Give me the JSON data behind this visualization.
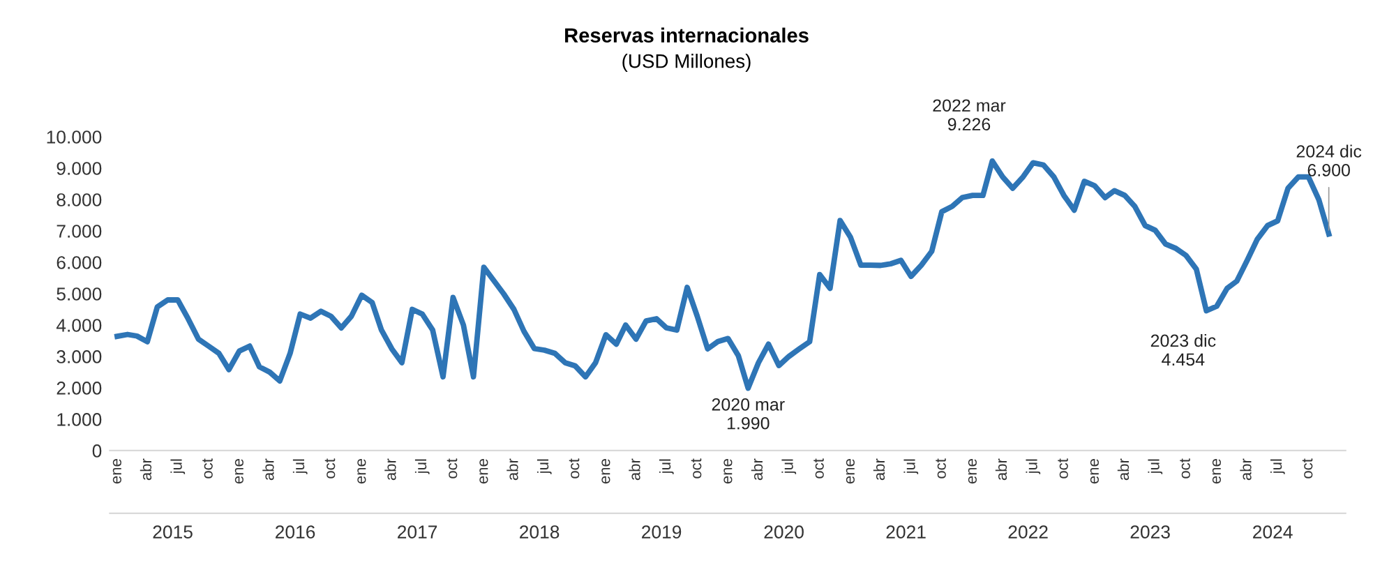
{
  "chart_data": {
    "type": "line",
    "title": "Reservas internacionales",
    "subtitle": "(USD Millones)",
    "x": [
      "2015-01",
      "2015-02",
      "2015-03",
      "2015-04",
      "2015-05",
      "2015-06",
      "2015-07",
      "2015-08",
      "2015-09",
      "2015-10",
      "2015-11",
      "2015-12",
      "2016-01",
      "2016-02",
      "2016-03",
      "2016-04",
      "2016-05",
      "2016-06",
      "2016-07",
      "2016-08",
      "2016-09",
      "2016-10",
      "2016-11",
      "2016-12",
      "2017-01",
      "2017-02",
      "2017-03",
      "2017-04",
      "2017-05",
      "2017-06",
      "2017-07",
      "2017-08",
      "2017-09",
      "2017-10",
      "2017-11",
      "2017-12",
      "2018-01",
      "2018-02",
      "2018-03",
      "2018-04",
      "2018-05",
      "2018-06",
      "2018-07",
      "2018-08",
      "2018-09",
      "2018-10",
      "2018-11",
      "2018-12",
      "2019-01",
      "2019-02",
      "2019-03",
      "2019-04",
      "2019-05",
      "2019-06",
      "2019-07",
      "2019-08",
      "2019-09",
      "2019-10",
      "2019-11",
      "2019-12",
      "2020-01",
      "2020-02",
      "2020-03",
      "2020-04",
      "2020-05",
      "2020-06",
      "2020-07",
      "2020-08",
      "2020-09",
      "2020-10",
      "2020-11",
      "2020-12",
      "2021-01",
      "2021-02",
      "2021-03",
      "2021-04",
      "2021-05",
      "2021-06",
      "2021-07",
      "2021-08",
      "2021-09",
      "2021-10",
      "2021-11",
      "2021-12",
      "2022-01",
      "2022-02",
      "2022-03",
      "2022-04",
      "2022-05",
      "2022-06",
      "2022-07",
      "2022-08",
      "2022-09",
      "2022-10",
      "2022-11",
      "2022-12",
      "2023-01",
      "2023-02",
      "2023-03",
      "2023-04",
      "2023-05",
      "2023-06",
      "2023-07",
      "2023-08",
      "2023-09",
      "2023-10",
      "2023-11",
      "2023-12",
      "2024-01",
      "2024-02",
      "2024-03",
      "2024-04",
      "2024-05",
      "2024-06",
      "2024-07",
      "2024-08",
      "2024-09",
      "2024-10",
      "2024-11",
      "2024-12"
    ],
    "series": [
      {
        "color": "#2e75b6",
        "values": [
          3640,
          3700,
          3650,
          3470,
          4580,
          4800,
          4800,
          4200,
          3550,
          3330,
          3100,
          2580,
          3170,
          3330,
          2670,
          2500,
          2220,
          3100,
          4350,
          4220,
          4440,
          4280,
          3910,
          4280,
          4950,
          4720,
          3840,
          3240,
          2800,
          4500,
          4350,
          3840,
          2350,
          4880,
          4000,
          2350,
          5840,
          5400,
          5000,
          4500,
          3800,
          3250,
          3200,
          3100,
          2800,
          2700,
          2350,
          2800,
          3690,
          3390,
          4000,
          3550,
          4130,
          4200,
          3910,
          3840,
          5200,
          4280,
          3240,
          3470,
          3570,
          3020,
          1990,
          2800,
          3390,
          2710,
          3000,
          3240,
          3470,
          5610,
          5170,
          7330,
          6800,
          5910,
          5910,
          5900,
          5950,
          6060,
          5550,
          5910,
          6350,
          7610,
          7780,
          8060,
          8130,
          8130,
          9226,
          8720,
          8360,
          8720,
          9170,
          9100,
          8720,
          8130,
          7660,
          8580,
          8440,
          8060,
          8280,
          8130,
          7780,
          7170,
          7020,
          6580,
          6440,
          6220,
          5780,
          4454,
          4600,
          5170,
          5400,
          6060,
          6730,
          7170,
          7320,
          8360,
          8720,
          8720,
          8000,
          6900
        ]
      }
    ],
    "xlim": [
      "2014-12-10",
      "2025-01-20"
    ],
    "xticks": [
      {
        "value": "2015-01",
        "label": "ene"
      },
      {
        "value": "2015-04",
        "label": "abr"
      },
      {
        "value": "2015-07",
        "label": "jul"
      },
      {
        "value": "2015-10",
        "label": "oct"
      },
      {
        "value": "2016-01",
        "label": "ene"
      },
      {
        "value": "2016-04",
        "label": "abr"
      },
      {
        "value": "2016-07",
        "label": "jul"
      },
      {
        "value": "2016-10",
        "label": "oct"
      },
      {
        "value": "2017-01",
        "label": "ene"
      },
      {
        "value": "2017-04",
        "label": "abr"
      },
      {
        "value": "2017-07",
        "label": "jul"
      },
      {
        "value": "2017-10",
        "label": "oct"
      },
      {
        "value": "2018-01",
        "label": "ene"
      },
      {
        "value": "2018-04",
        "label": "abr"
      },
      {
        "value": "2018-07",
        "label": "jul"
      },
      {
        "value": "2018-10",
        "label": "oct"
      },
      {
        "value": "2019-01",
        "label": "ene"
      },
      {
        "value": "2019-04",
        "label": "abr"
      },
      {
        "value": "2019-07",
        "label": "jul"
      },
      {
        "value": "2019-10",
        "label": "oct"
      },
      {
        "value": "2020-01",
        "label": "ene"
      },
      {
        "value": "2020-04",
        "label": "abr"
      },
      {
        "value": "2020-07",
        "label": "jul"
      },
      {
        "value": "2020-10",
        "label": "oct"
      },
      {
        "value": "2021-01",
        "label": "ene"
      },
      {
        "value": "2021-04",
        "label": "abr"
      },
      {
        "value": "2021-07",
        "label": "jul"
      },
      {
        "value": "2021-10",
        "label": "oct"
      },
      {
        "value": "2022-01",
        "label": "ene"
      },
      {
        "value": "2022-04",
        "label": "abr"
      },
      {
        "value": "2022-07",
        "label": "jul"
      },
      {
        "value": "2022-10",
        "label": "oct"
      },
      {
        "value": "2023-01",
        "label": "ene"
      },
      {
        "value": "2023-04",
        "label": "abr"
      },
      {
        "value": "2023-07",
        "label": "jul"
      },
      {
        "value": "2023-10",
        "label": "oct"
      },
      {
        "value": "2024-01",
        "label": "ene"
      },
      {
        "value": "2024-04",
        "label": "abr"
      },
      {
        "value": "2024-07",
        "label": "jul"
      },
      {
        "value": "2024-10",
        "label": "oct"
      }
    ],
    "x2lim": [
      "2014-12-10",
      "2025-01-20"
    ],
    "x2ticks": [
      {
        "value": "2015-06-16",
        "label": "2015"
      },
      {
        "value": "2016-06-16",
        "label": "2016"
      },
      {
        "value": "2017-06-16",
        "label": "2017"
      },
      {
        "value": "2018-06-16",
        "label": "2018"
      },
      {
        "value": "2019-06-16",
        "label": "2019"
      },
      {
        "value": "2020-06-16",
        "label": "2020"
      },
      {
        "value": "2021-06-16",
        "label": "2021"
      },
      {
        "value": "2022-06-16",
        "label": "2022"
      },
      {
        "value": "2023-06-16",
        "label": "2023"
      },
      {
        "value": "2024-06-16",
        "label": "2024"
      }
    ],
    "ylim": [
      0,
      10000
    ],
    "yticks": [
      0,
      {
        "value": 1000,
        "label": "1.000"
      },
      {
        "value": 2000,
        "label": "2.000"
      },
      {
        "value": 3000,
        "label": "3.000"
      },
      {
        "value": 4000,
        "label": "4.000"
      },
      {
        "value": 5000,
        "label": "5.000"
      },
      {
        "value": 6000,
        "label": "6.000"
      },
      {
        "value": 7000,
        "label": "7.000"
      },
      {
        "value": 8000,
        "label": "8.000"
      },
      {
        "value": 9000,
        "label": "9.000"
      },
      {
        "value": 10000,
        "label": "10.000"
      }
    ],
    "annotations": [
      {
        "text": "2020 mar\n1.990",
        "x": "2020-03",
        "y": 1990
      },
      {
        "text": "2022 mar\n9.226",
        "x": "2022-03",
        "y": 9226
      },
      {
        "text": "2023 dic\n4.454",
        "x": "2023-12",
        "y": 4454
      },
      {
        "text": "2024 dic\n6.900",
        "x": "2024-12",
        "y": 6900
      }
    ],
    "grid": false,
    "legend": false,
    "marker": "none",
    "line_style": "solid"
  }
}
